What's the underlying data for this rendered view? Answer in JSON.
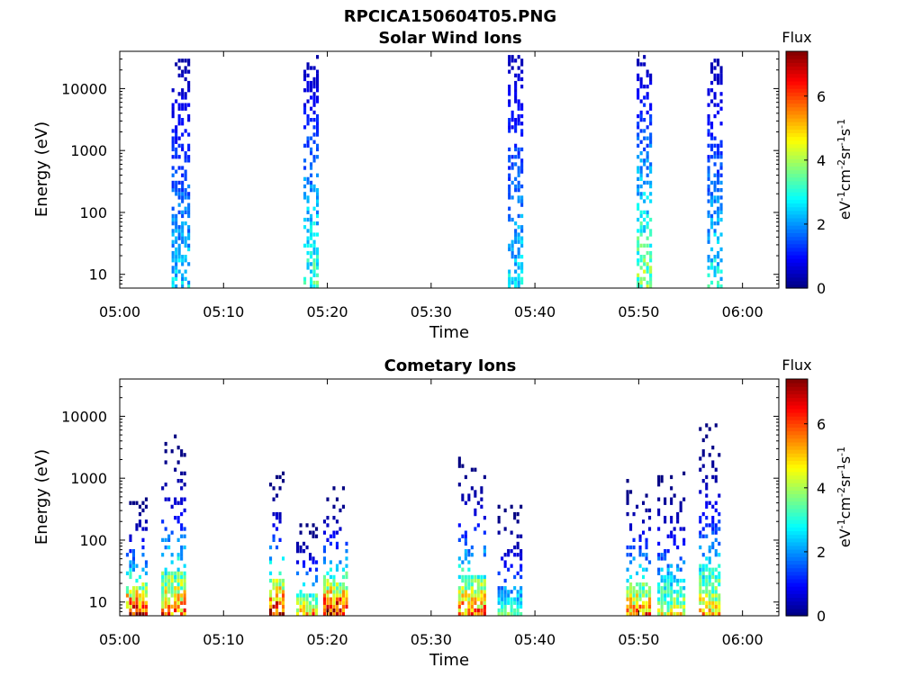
{
  "figure_title": "RPCICA150604T05.PNG",
  "colorbar": {
    "label_main": "Flux",
    "unit_prefix": "eV",
    "unit_parts": [
      "eV",
      "-1",
      "cm",
      "-2",
      "sr",
      "-1",
      "s",
      "-1"
    ],
    "ticks": [
      "0",
      "2",
      "4",
      "6"
    ],
    "range": [
      0,
      7.4
    ],
    "colormap": "jet"
  },
  "chart_data": [
    {
      "type": "heatmap",
      "title": "Solar Wind Ions",
      "xlabel": "Time",
      "ylabel": "Energy (eV)",
      "x_ticks": [
        "05:00",
        "05:10",
        "05:20",
        "05:30",
        "05:40",
        "05:50",
        "06:00"
      ],
      "y_ticks": [
        "10",
        "100",
        "1000",
        "10000"
      ],
      "y_scale": "log",
      "x_range_minutes": [
        0,
        63.5
      ],
      "y_range_eV": [
        6,
        40000
      ],
      "color_range": [
        0,
        7.4
      ],
      "clusters": [
        {
          "t_min": 5.0,
          "t_max": 6.7,
          "e_low_eV": 6,
          "e_high_eV": 30000,
          "flux_peak": 2.5,
          "flux_high_energy": 0.3
        },
        {
          "t_min": 17.7,
          "t_max": 19.3,
          "e_low_eV": 6,
          "e_high_eV": 33000,
          "flux_peak": 3.2,
          "flux_high_energy": 0.3
        },
        {
          "t_min": 37.4,
          "t_max": 38.9,
          "e_low_eV": 6,
          "e_high_eV": 35000,
          "flux_peak": 2.6,
          "flux_high_energy": 0.4
        },
        {
          "t_min": 49.8,
          "t_max": 51.4,
          "e_low_eV": 6,
          "e_high_eV": 35000,
          "flux_peak": 3.8,
          "flux_high_energy": 0.3
        },
        {
          "t_min": 56.6,
          "t_max": 58.2,
          "e_low_eV": 6,
          "e_high_eV": 30000,
          "flux_peak": 2.8,
          "flux_high_energy": 0.3
        }
      ]
    },
    {
      "type": "heatmap",
      "title": "Cometary Ions",
      "xlabel": "Time",
      "ylabel": "Energy (eV)",
      "x_ticks": [
        "05:00",
        "05:10",
        "05:20",
        "05:30",
        "05:40",
        "05:50",
        "06:00"
      ],
      "y_ticks": [
        "10",
        "100",
        "1000",
        "10000"
      ],
      "y_scale": "log",
      "x_range_minutes": [
        0,
        63.5
      ],
      "y_range_eV": [
        6,
        40000
      ],
      "color_range": [
        0,
        7.4
      ],
      "clusters": [
        {
          "t_min": 0.6,
          "t_max": 2.6,
          "e_low_eV": 6,
          "e_high_eV": 600,
          "flux_peak": 6.8
        },
        {
          "t_min": 4.0,
          "t_max": 6.3,
          "e_low_eV": 6,
          "e_high_eV": 5000,
          "flux_peak": 5.8
        },
        {
          "t_min": 14.4,
          "t_max": 16.0,
          "e_low_eV": 6,
          "e_high_eV": 1200,
          "flux_peak": 7.0
        },
        {
          "t_min": 17.0,
          "t_max": 19.0,
          "e_low_eV": 6,
          "e_high_eV": 200,
          "flux_peak": 5.5
        },
        {
          "t_min": 19.6,
          "t_max": 22.0,
          "e_low_eV": 6,
          "e_high_eV": 700,
          "flux_peak": 7.2
        },
        {
          "t_min": 32.6,
          "t_max": 35.4,
          "e_low_eV": 6,
          "e_high_eV": 2500,
          "flux_peak": 5.9
        },
        {
          "t_min": 36.4,
          "t_max": 38.8,
          "e_low_eV": 6,
          "e_high_eV": 400,
          "flux_peak": 3.5
        },
        {
          "t_min": 48.8,
          "t_max": 51.2,
          "e_low_eV": 6,
          "e_high_eV": 1000,
          "flux_peak": 5.8
        },
        {
          "t_min": 51.8,
          "t_max": 54.6,
          "e_low_eV": 6,
          "e_high_eV": 1500,
          "flux_peak": 4.6
        },
        {
          "t_min": 55.8,
          "t_max": 58.0,
          "e_low_eV": 6,
          "e_high_eV": 8000,
          "flux_peak": 5.0
        }
      ]
    }
  ]
}
